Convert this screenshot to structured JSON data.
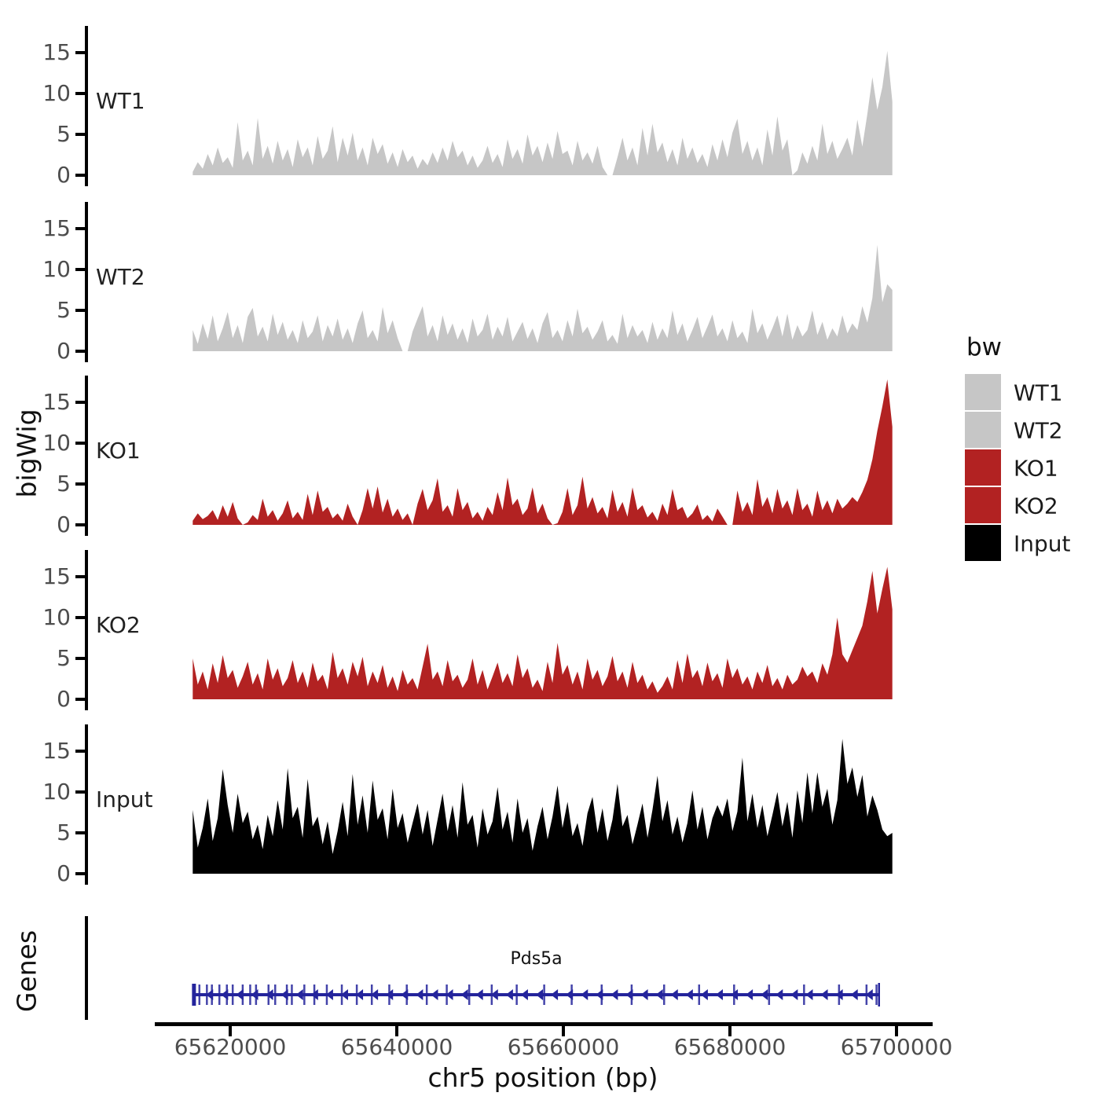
{
  "figure": {
    "background": "#FFFFFF"
  },
  "legend": {
    "title": "bw",
    "items": [
      {
        "label": "WT1",
        "color": "#C6C6C6"
      },
      {
        "label": "WT2",
        "color": "#C6C6C6"
      },
      {
        "label": "KO1",
        "color": "#B22222"
      },
      {
        "label": "KO2",
        "color": "#B22222"
      },
      {
        "label": "Input",
        "color": "#000000"
      }
    ]
  },
  "chart_data": {
    "type": "area",
    "title": "",
    "xlabel": "chr5 position (bp)",
    "ylabel": "bigWig",
    "gene_panel_label": "Genes",
    "x_axis": {
      "ticks": [
        65620000,
        65640000,
        65660000,
        65680000,
        65700000
      ],
      "labels": [
        "65620000",
        "65640000",
        "65660000",
        "65680000",
        "65700000"
      ],
      "range_bp": [
        65611200,
        65704600
      ]
    },
    "y_axis": {
      "ticks": [
        0,
        5,
        10,
        15
      ],
      "ylim": [
        0,
        18.5
      ]
    },
    "x_start": 65615500,
    "x_step": 600,
    "tracks": [
      {
        "name": "WT1",
        "color": "#C6C6C6",
        "values": [
          0.4,
          1.6,
          0.8,
          2.6,
          1.2,
          3.4,
          1.5,
          2.2,
          0.9,
          6.5,
          1.8,
          3.0,
          1.2,
          7.0,
          2.0,
          3.6,
          1.4,
          4.2,
          1.8,
          3.2,
          1.0,
          4.4,
          2.2,
          3.4,
          1.2,
          4.8,
          2.0,
          3.0,
          6.0,
          1.6,
          4.6,
          2.4,
          5.2,
          1.8,
          3.4,
          1.2,
          4.6,
          2.6,
          3.8,
          1.4,
          2.8,
          1.0,
          3.2,
          1.6,
          2.4,
          0.8,
          2.0,
          1.2,
          2.8,
          1.5,
          3.4,
          1.8,
          4.2,
          2.2,
          3.0,
          1.2,
          2.4,
          0.9,
          1.8,
          3.6,
          1.5,
          2.6,
          1.0,
          4.4,
          2.0,
          3.2,
          1.4,
          5.0,
          2.4,
          3.6,
          1.6,
          4.0,
          2.0,
          5.4,
          2.6,
          3.0,
          1.2,
          4.2,
          1.8,
          2.8,
          1.4,
          3.6,
          1.0,
          0.0,
          0.0,
          2.2,
          4.6,
          1.8,
          3.4,
          1.2,
          5.8,
          2.4,
          6.3,
          2.8,
          4.0,
          1.6,
          3.2,
          1.2,
          4.6,
          2.0,
          3.4,
          1.5,
          2.6,
          1.0,
          3.8,
          1.8,
          4.4,
          2.2,
          5.2,
          6.9,
          2.6,
          4.2,
          1.8,
          3.4,
          1.2,
          5.6,
          2.4,
          7.2,
          3.0,
          4.4,
          0.0,
          0.6,
          2.8,
          1.4,
          3.6,
          1.8,
          6.3,
          2.6,
          4.2,
          2.0,
          3.2,
          4.6,
          2.4,
          6.8,
          3.5,
          7.5,
          12.0,
          8.0,
          10.8,
          15.2,
          9.0
        ]
      },
      {
        "name": "WT2",
        "color": "#C6C6C6",
        "values": [
          2.6,
          0.9,
          3.4,
          1.5,
          4.4,
          1.2,
          2.8,
          4.8,
          1.6,
          3.2,
          1.0,
          4.2,
          5.3,
          1.8,
          3.0,
          1.2,
          4.6,
          2.0,
          3.6,
          1.4,
          2.6,
          1.0,
          3.8,
          1.6,
          2.4,
          4.4,
          1.2,
          3.2,
          1.8,
          4.0,
          1.4,
          2.8,
          1.0,
          3.4,
          5.0,
          1.6,
          2.6,
          1.2,
          5.4,
          2.2,
          3.8,
          1.6,
          0.0,
          0.0,
          2.4,
          4.0,
          5.5,
          1.8,
          3.2,
          1.2,
          4.4,
          2.0,
          3.4,
          1.4,
          2.8,
          1.0,
          4.0,
          1.8,
          2.6,
          4.6,
          1.4,
          3.0,
          1.8,
          4.2,
          1.2,
          2.4,
          3.6,
          1.5,
          2.8,
          1.0,
          3.4,
          4.8,
          1.6,
          2.6,
          1.2,
          3.8,
          1.8,
          5.2,
          2.2,
          3.0,
          1.4,
          2.4,
          3.8,
          1.2,
          2.0,
          0.9,
          4.6,
          1.6,
          3.2,
          1.8,
          2.6,
          1.0,
          3.6,
          1.4,
          2.8,
          1.6,
          5.0,
          2.0,
          3.4,
          1.2,
          2.6,
          4.2,
          1.6,
          3.0,
          4.5,
          1.8,
          2.8,
          1.2,
          3.8,
          1.6,
          2.4,
          1.0,
          5.2,
          2.2,
          3.4,
          1.4,
          2.8,
          4.4,
          1.8,
          4.6,
          1.4,
          3.2,
          1.8,
          2.6,
          5.0,
          2.0,
          3.6,
          1.4,
          2.8,
          1.8,
          4.4,
          2.2,
          3.4,
          2.6,
          5.5,
          3.5,
          6.5,
          13.0,
          6.0,
          8.2,
          7.5
        ]
      },
      {
        "name": "KO1",
        "color": "#B22222",
        "values": [
          0.5,
          1.4,
          0.7,
          1.1,
          1.8,
          0.6,
          2.4,
          1.0,
          2.8,
          0.8,
          0.0,
          0.3,
          1.2,
          0.6,
          3.2,
          1.0,
          1.8,
          0.5,
          1.4,
          3.0,
          0.8,
          1.6,
          0.6,
          3.8,
          1.2,
          4.2,
          1.6,
          2.2,
          0.8,
          1.4,
          0.5,
          2.6,
          1.0,
          0.0,
          1.8,
          4.5,
          2.0,
          4.7,
          1.5,
          3.2,
          1.0,
          2.0,
          0.6,
          1.4,
          0.0,
          2.6,
          4.4,
          1.8,
          3.0,
          5.7,
          1.6,
          2.4,
          1.0,
          4.5,
          1.8,
          2.8,
          0.8,
          1.6,
          0.5,
          2.2,
          1.2,
          4.0,
          1.8,
          5.8,
          2.4,
          3.2,
          1.2,
          2.0,
          4.6,
          1.4,
          2.6,
          0.8,
          0.0,
          0.2,
          1.6,
          4.5,
          1.2,
          2.4,
          5.9,
          2.0,
          3.4,
          1.4,
          2.2,
          0.8,
          4.3,
          1.6,
          2.8,
          1.0,
          4.6,
          1.8,
          2.4,
          0.9,
          1.6,
          0.5,
          2.6,
          1.2,
          4.4,
          1.8,
          2.2,
          0.8,
          1.4,
          2.5,
          0.6,
          1.2,
          0.4,
          2.0,
          1.0,
          0.0,
          0.0,
          4.2,
          1.6,
          2.8,
          1.2,
          5.6,
          2.2,
          3.4,
          1.4,
          4.4,
          2.0,
          3.0,
          1.2,
          4.5,
          1.8,
          2.6,
          1.0,
          4.2,
          1.8,
          3.0,
          1.4,
          3.2,
          2.0,
          2.6,
          3.4,
          2.8,
          4.0,
          5.5,
          8.0,
          11.5,
          14.5,
          17.8,
          12.0
        ]
      },
      {
        "name": "KO2",
        "color": "#B22222",
        "values": [
          5.0,
          1.8,
          3.4,
          1.2,
          4.4,
          2.0,
          5.4,
          2.6,
          3.6,
          1.4,
          2.8,
          4.6,
          1.8,
          3.2,
          1.2,
          5.0,
          2.4,
          3.8,
          1.6,
          2.6,
          4.8,
          2.0,
          3.4,
          1.4,
          4.5,
          2.2,
          3.0,
          1.2,
          5.8,
          2.6,
          3.8,
          1.8,
          4.6,
          2.8,
          5.2,
          1.6,
          3.4,
          2.0,
          4.2,
          1.4,
          2.8,
          1.0,
          3.6,
          1.8,
          2.6,
          1.2,
          4.0,
          6.8,
          2.4,
          3.4,
          1.6,
          4.8,
          2.2,
          3.0,
          1.4,
          2.4,
          5.0,
          1.8,
          3.6,
          1.2,
          2.8,
          4.5,
          2.0,
          3.2,
          1.6,
          5.5,
          2.6,
          3.8,
          1.4,
          2.4,
          1.0,
          4.6,
          2.0,
          6.9,
          3.0,
          4.2,
          1.8,
          3.4,
          1.2,
          5.0,
          2.4,
          3.6,
          1.6,
          2.8,
          5.3,
          2.2,
          3.4,
          1.4,
          4.6,
          2.0,
          3.0,
          1.2,
          2.2,
          0.8,
          1.6,
          2.8,
          1.2,
          4.8,
          2.0,
          5.6,
          2.6,
          3.6,
          1.6,
          4.5,
          2.2,
          3.2,
          1.4,
          5.0,
          2.6,
          3.8,
          1.8,
          2.8,
          1.2,
          3.4,
          2.0,
          4.2,
          1.6,
          2.6,
          1.2,
          3.0,
          1.8,
          2.4,
          4.0,
          2.8,
          3.4,
          2.0,
          4.4,
          3.0,
          5.5,
          10.0,
          5.5,
          4.5,
          6.0,
          7.5,
          9.0,
          12.0,
          15.7,
          10.5,
          13.5,
          16.2,
          11.0
        ]
      },
      {
        "name": "Input",
        "color": "#000000",
        "values": [
          7.8,
          3.2,
          5.6,
          9.2,
          4.0,
          6.8,
          12.8,
          8.4,
          5.0,
          9.8,
          6.2,
          7.6,
          4.2,
          6.0,
          3.0,
          7.2,
          4.6,
          9.0,
          5.4,
          12.9,
          6.8,
          8.2,
          4.4,
          11.6,
          5.8,
          7.0,
          3.6,
          6.4,
          2.4,
          5.2,
          8.8,
          4.6,
          12.2,
          6.0,
          9.6,
          5.0,
          11.4,
          6.6,
          8.0,
          4.2,
          10.4,
          5.6,
          7.4,
          3.8,
          6.2,
          8.6,
          4.8,
          7.8,
          3.4,
          6.6,
          9.8,
          5.2,
          8.4,
          4.4,
          11.2,
          6.0,
          7.2,
          3.2,
          8.0,
          4.8,
          6.4,
          10.6,
          5.4,
          7.6,
          3.8,
          9.2,
          5.0,
          6.8,
          2.8,
          5.8,
          8.2,
          4.2,
          7.0,
          10.8,
          5.6,
          8.8,
          4.6,
          6.2,
          3.4,
          7.4,
          9.4,
          5.0,
          8.0,
          4.0,
          6.6,
          11.0,
          5.8,
          7.2,
          3.6,
          6.0,
          8.6,
          4.4,
          7.8,
          12.0,
          6.4,
          9.0,
          4.8,
          7.0,
          3.8,
          6.2,
          10.2,
          5.4,
          8.2,
          4.2,
          6.8,
          8.4,
          7.0,
          9.2,
          5.2,
          7.6,
          14.2,
          6.4,
          9.8,
          5.6,
          8.4,
          4.6,
          7.2,
          10.0,
          5.8,
          8.8,
          4.4,
          10.2,
          6.2,
          12.4,
          7.4,
          12.4,
          8.2,
          10.4,
          6.0,
          9.0,
          16.5,
          11.0,
          13.0,
          9.4,
          12.1,
          7.0,
          9.6,
          7.8,
          5.4,
          4.6,
          5.0
        ]
      }
    ],
    "gene": {
      "label": "Pds5a",
      "color": "#24249C",
      "strand": "-",
      "start": 65615600,
      "end": 65697900,
      "exons": [
        65615700,
        65616300,
        65617200,
        65617800,
        65618700,
        65619600,
        65620300,
        65621500,
        65622400,
        65623100,
        65624600,
        65625400,
        65626800,
        65627400,
        65628900,
        65630100,
        65631600,
        65633400,
        65635200,
        65637000,
        65639100,
        65641200,
        65643600,
        65646000,
        65648700,
        65651400,
        65654400,
        65657700,
        65661000,
        65664600,
        65668200,
        65672100,
        65676300,
        65680500,
        65684700,
        65688900,
        65693100,
        65696400,
        65697600
      ]
    }
  }
}
